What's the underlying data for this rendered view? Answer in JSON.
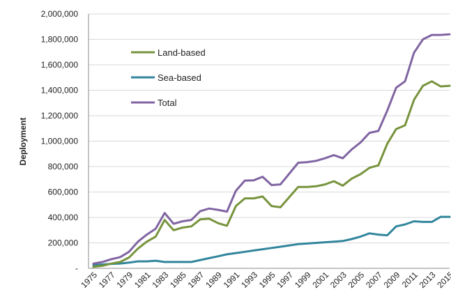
{
  "chart_data": {
    "type": "line",
    "title": "",
    "xlabel": "",
    "ylabel": "Deployment",
    "ylim": [
      0,
      2000000
    ],
    "yticks": [
      {
        "value": 0,
        "label": "-"
      },
      {
        "value": 200000,
        "label": "200,000"
      },
      {
        "value": 400000,
        "label": "400,000"
      },
      {
        "value": 600000,
        "label": "600,000"
      },
      {
        "value": 800000,
        "label": "800,000"
      },
      {
        "value": 1000000,
        "label": "1,000,000"
      },
      {
        "value": 1200000,
        "label": "1,200,000"
      },
      {
        "value": 1400000,
        "label": "1,400,000"
      },
      {
        "value": 1600000,
        "label": "1,600,000"
      },
      {
        "value": 1800000,
        "label": "1,800,000"
      },
      {
        "value": 2000000,
        "label": "2,000,000"
      }
    ],
    "x": [
      1975,
      1976,
      1977,
      1978,
      1979,
      1980,
      1981,
      1982,
      1983,
      1984,
      1985,
      1986,
      1987,
      1988,
      1989,
      1990,
      1991,
      1992,
      1993,
      1994,
      1995,
      1996,
      1997,
      1998,
      1999,
      2000,
      2001,
      2002,
      2003,
      2004,
      2005,
      2006,
      2007,
      2008,
      2009,
      2010,
      2011,
      2012,
      2013,
      2014,
      2015
    ],
    "xtick_labels": [
      "1975",
      "1977",
      "1979",
      "1981",
      "1983",
      "1985",
      "1987",
      "1989",
      "1991",
      "1993",
      "1995",
      "1997",
      "1999",
      "2001",
      "2003",
      "2005",
      "2007",
      "2009",
      "2011",
      "2013",
      "2015"
    ],
    "grid": true,
    "legend_position": "top-left",
    "series": [
      {
        "name": "Land-based",
        "color": "#77933c",
        "values": [
          12000,
          20000,
          37000,
          50000,
          85000,
          155000,
          210000,
          250000,
          380000,
          300000,
          320000,
          330000,
          385000,
          390000,
          355000,
          335000,
          490000,
          550000,
          550000,
          565000,
          490000,
          480000,
          560000,
          640000,
          640000,
          645000,
          660000,
          685000,
          650000,
          705000,
          740000,
          790000,
          810000,
          980000,
          1095000,
          1125000,
          1325000,
          1435000,
          1470000,
          1430000,
          1435000
        ]
      },
      {
        "name": "Sea-based",
        "color": "#31859c",
        "values": [
          25000,
          30000,
          35000,
          38000,
          45000,
          55000,
          55000,
          60000,
          50000,
          50000,
          50000,
          50000,
          65000,
          80000,
          95000,
          110000,
          120000,
          130000,
          140000,
          150000,
          160000,
          170000,
          180000,
          190000,
          195000,
          200000,
          205000,
          210000,
          215000,
          230000,
          250000,
          275000,
          265000,
          260000,
          330000,
          345000,
          370000,
          365000,
          365000,
          405000,
          405000
        ]
      },
      {
        "name": "Total",
        "color": "#8064a2",
        "values": [
          37000,
          50000,
          72000,
          88000,
          130000,
          210000,
          265000,
          312000,
          435000,
          350000,
          370000,
          380000,
          450000,
          470000,
          460000,
          446000,
          610000,
          690000,
          692000,
          720000,
          655000,
          660000,
          745000,
          830000,
          835000,
          845000,
          865000,
          890000,
          865000,
          935000,
          990000,
          1065000,
          1080000,
          1240000,
          1420000,
          1470000,
          1695000,
          1800000,
          1835000,
          1835000,
          1840000
        ]
      }
    ]
  }
}
